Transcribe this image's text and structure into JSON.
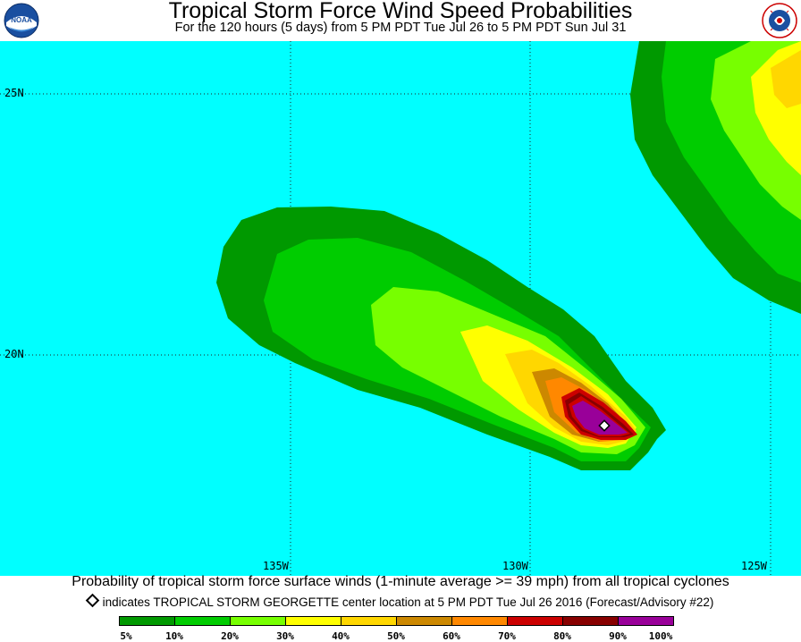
{
  "header": {
    "title": "Tropical Storm Force Wind Speed Probabilities",
    "subtitle": "For the 120 hours (5 days) from 5 PM PDT Tue Jul 26 to 5 PM PDT Sun Jul 31"
  },
  "logos": {
    "left": "NOAA",
    "right": "NATIONAL WEATHER SERVICE"
  },
  "map": {
    "background_color": "#00ffff",
    "lat_labels": [
      "25N",
      "20N"
    ],
    "lon_labels": [
      "135W",
      "130W",
      "125W"
    ]
  },
  "footer": {
    "caption": "Probability of tropical storm force surface winds (1-minute average >= 39 mph) from all tropical cyclones",
    "note": "indicates TROPICAL STORM GEORGETTE center location at 5 PM PDT Tue Jul 26 2016 (Forecast/Advisory #22)"
  },
  "legend": {
    "colors": [
      "#009900",
      "#00cc00",
      "#77ff00",
      "#ffff00",
      "#ffd700",
      "#cc8800",
      "#ff8800",
      "#cc0000",
      "#880000",
      "#990099"
    ],
    "labels": [
      "5%",
      "10%",
      "20%",
      "30%",
      "40%",
      "50%",
      "60%",
      "70%",
      "80%",
      "90%",
      "100%"
    ]
  }
}
